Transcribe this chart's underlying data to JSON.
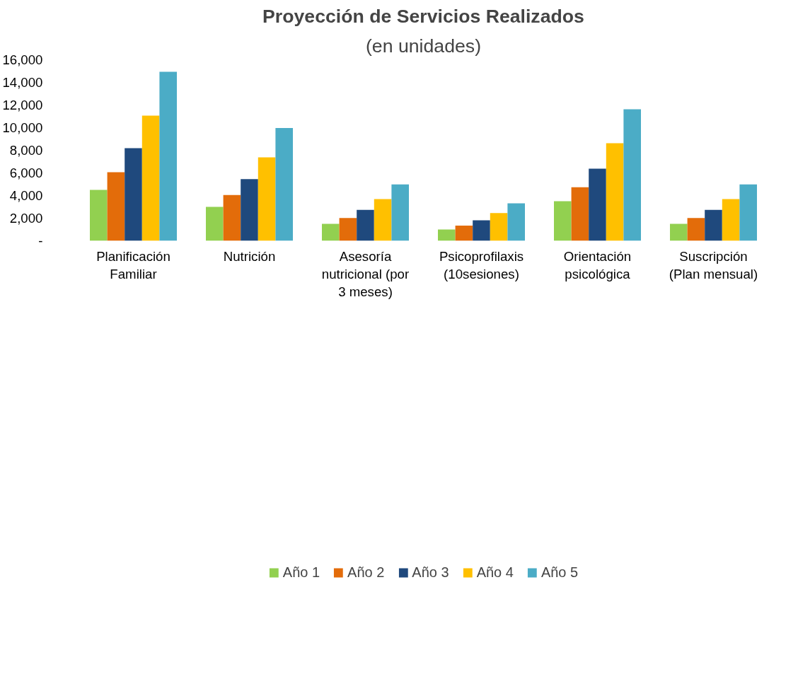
{
  "chart_data": {
    "type": "bar",
    "title": "Proyección de Servicios Realizados",
    "subtitle": "(en unidades)",
    "categories": [
      "Planificación Familiar",
      "Nutrición",
      "Asesoría nutricional (por 3 meses)",
      "Psicoprofilaxis (10sesiones)",
      "Orientación psicológica",
      "Suscripción (Plan mensual)"
    ],
    "series": [
      {
        "name": "Año 1",
        "color": "#92d050",
        "values": [
          4500,
          3000,
          1500,
          1000,
          3500,
          1500
        ]
      },
      {
        "name": "Año 2",
        "color": "#e36c0a",
        "values": [
          6070,
          4040,
          2020,
          1350,
          4730,
          2020
        ]
      },
      {
        "name": "Año 3",
        "color": "#1f497d",
        "values": [
          8190,
          5460,
          2730,
          1820,
          6380,
          2730
        ]
      },
      {
        "name": "Año 4",
        "color": "#ffc000",
        "values": [
          11070,
          7370,
          3680,
          2460,
          8620,
          3680
        ]
      },
      {
        "name": "Año 5",
        "color": "#4bacc6",
        "values": [
          14940,
          9970,
          4980,
          3320,
          11630,
          4980
        ]
      }
    ],
    "ylim": [
      0,
      16000
    ],
    "yticks": [
      {
        "value": 0,
        "label": "-"
      },
      {
        "value": 2000,
        "label": "2,000"
      },
      {
        "value": 4000,
        "label": "4,000"
      },
      {
        "value": 6000,
        "label": "6,000"
      },
      {
        "value": 8000,
        "label": "8,000"
      },
      {
        "value": 10000,
        "label": "10,000"
      },
      {
        "value": 12000,
        "label": "12,000"
      },
      {
        "value": 14000,
        "label": "14,000"
      },
      {
        "value": 16000,
        "label": "16,000"
      }
    ],
    "grid": false,
    "legend": "bottom"
  }
}
